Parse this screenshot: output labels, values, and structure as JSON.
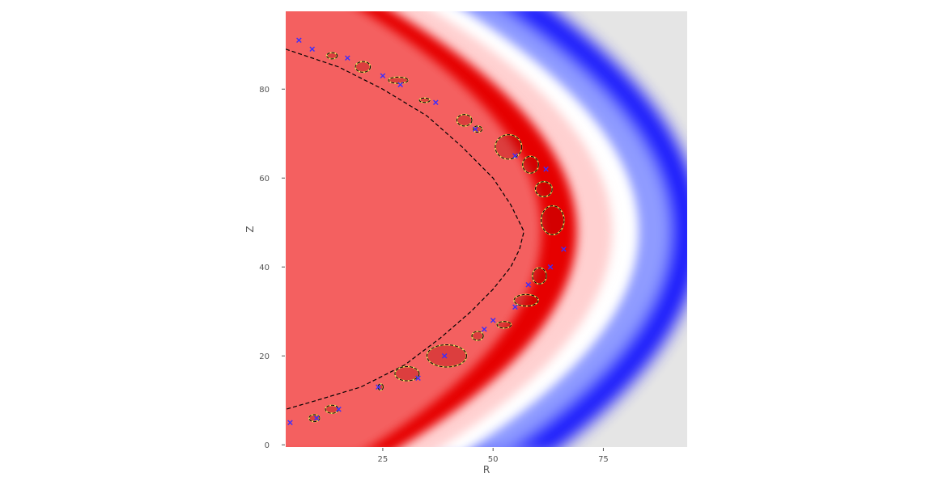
{
  "chart_data": {
    "type": "heatmap",
    "title": "",
    "xlabel": "R",
    "ylabel": "Z",
    "xlim": [
      3,
      94
    ],
    "ylim": [
      -0.5,
      97.5
    ],
    "x_ticks": [
      25,
      50,
      75
    ],
    "y_ticks": [
      0,
      20,
      40,
      60,
      80
    ],
    "grid": false,
    "background_color": "#e5e5e5",
    "colormap": [
      "#0000ff",
      "#ffffff",
      "#ff0000"
    ],
    "interior_color": "#f46060",
    "ring_color": "#e60000",
    "boundary_curve": {
      "style": "dashed",
      "color": "#000000",
      "vertex": [
        57,
        48
      ],
      "points": [
        [
          3,
          89
        ],
        [
          15,
          85
        ],
        [
          25,
          80
        ],
        [
          35,
          74
        ],
        [
          43,
          67
        ],
        [
          50,
          60
        ],
        [
          54,
          54
        ],
        [
          56,
          50
        ],
        [
          57,
          48
        ],
        [
          56,
          44
        ],
        [
          54,
          40
        ],
        [
          50,
          35
        ],
        [
          45,
          30
        ],
        [
          38,
          24
        ],
        [
          30,
          18
        ],
        [
          20,
          13
        ],
        [
          10,
          10
        ],
        [
          3,
          8
        ]
      ]
    },
    "islands": [
      {
        "r": 9.5,
        "z": 6,
        "w": 2.4,
        "h": 1.6
      },
      {
        "r": 13.5,
        "z": 8,
        "w": 3.0,
        "h": 1.8
      },
      {
        "r": 24.5,
        "z": 13,
        "w": 1.2,
        "h": 1.4
      },
      {
        "r": 30.5,
        "z": 16,
        "w": 5.5,
        "h": 3.2
      },
      {
        "r": 39.5,
        "z": 20,
        "w": 9.0,
        "h": 5.0
      },
      {
        "r": 46.5,
        "z": 24.5,
        "w": 2.6,
        "h": 2.0
      },
      {
        "r": 52.5,
        "z": 27,
        "w": 3.2,
        "h": 1.5
      },
      {
        "r": 57.5,
        "z": 32.5,
        "w": 5.5,
        "h": 2.6
      },
      {
        "r": 60.5,
        "z": 38,
        "w": 3.2,
        "h": 3.6
      },
      {
        "r": 63.5,
        "z": 50.5,
        "w": 5.2,
        "h": 6.5
      },
      {
        "r": 61.5,
        "z": 57.5,
        "w": 3.8,
        "h": 3.4
      },
      {
        "r": 58.5,
        "z": 63,
        "w": 3.6,
        "h": 3.8
      },
      {
        "r": 53.5,
        "z": 67,
        "w": 6.0,
        "h": 5.5
      },
      {
        "r": 46.5,
        "z": 71,
        "w": 2.0,
        "h": 1.4
      },
      {
        "r": 43.5,
        "z": 73,
        "w": 3.4,
        "h": 2.6
      },
      {
        "r": 34.5,
        "z": 77.5,
        "w": 2.4,
        "h": 1.0
      },
      {
        "r": 28.5,
        "z": 82,
        "w": 4.4,
        "h": 1.4
      },
      {
        "r": 20.5,
        "z": 85,
        "w": 3.4,
        "h": 2.4
      },
      {
        "r": 13.5,
        "z": 87.5,
        "w": 2.4,
        "h": 1.4
      }
    ],
    "markers": [
      [
        6,
        91
      ],
      [
        9,
        89
      ],
      [
        17,
        87
      ],
      [
        25,
        83
      ],
      [
        29,
        81
      ],
      [
        37,
        77
      ],
      [
        46,
        71
      ],
      [
        55,
        65
      ],
      [
        62,
        62
      ],
      [
        66,
        44
      ],
      [
        63,
        40
      ],
      [
        58,
        36
      ],
      [
        55,
        31
      ],
      [
        50,
        28
      ],
      [
        48,
        26
      ],
      [
        39,
        20
      ],
      [
        33,
        15
      ],
      [
        24,
        13
      ],
      [
        15,
        8
      ],
      [
        10,
        6
      ],
      [
        4,
        5
      ]
    ]
  }
}
